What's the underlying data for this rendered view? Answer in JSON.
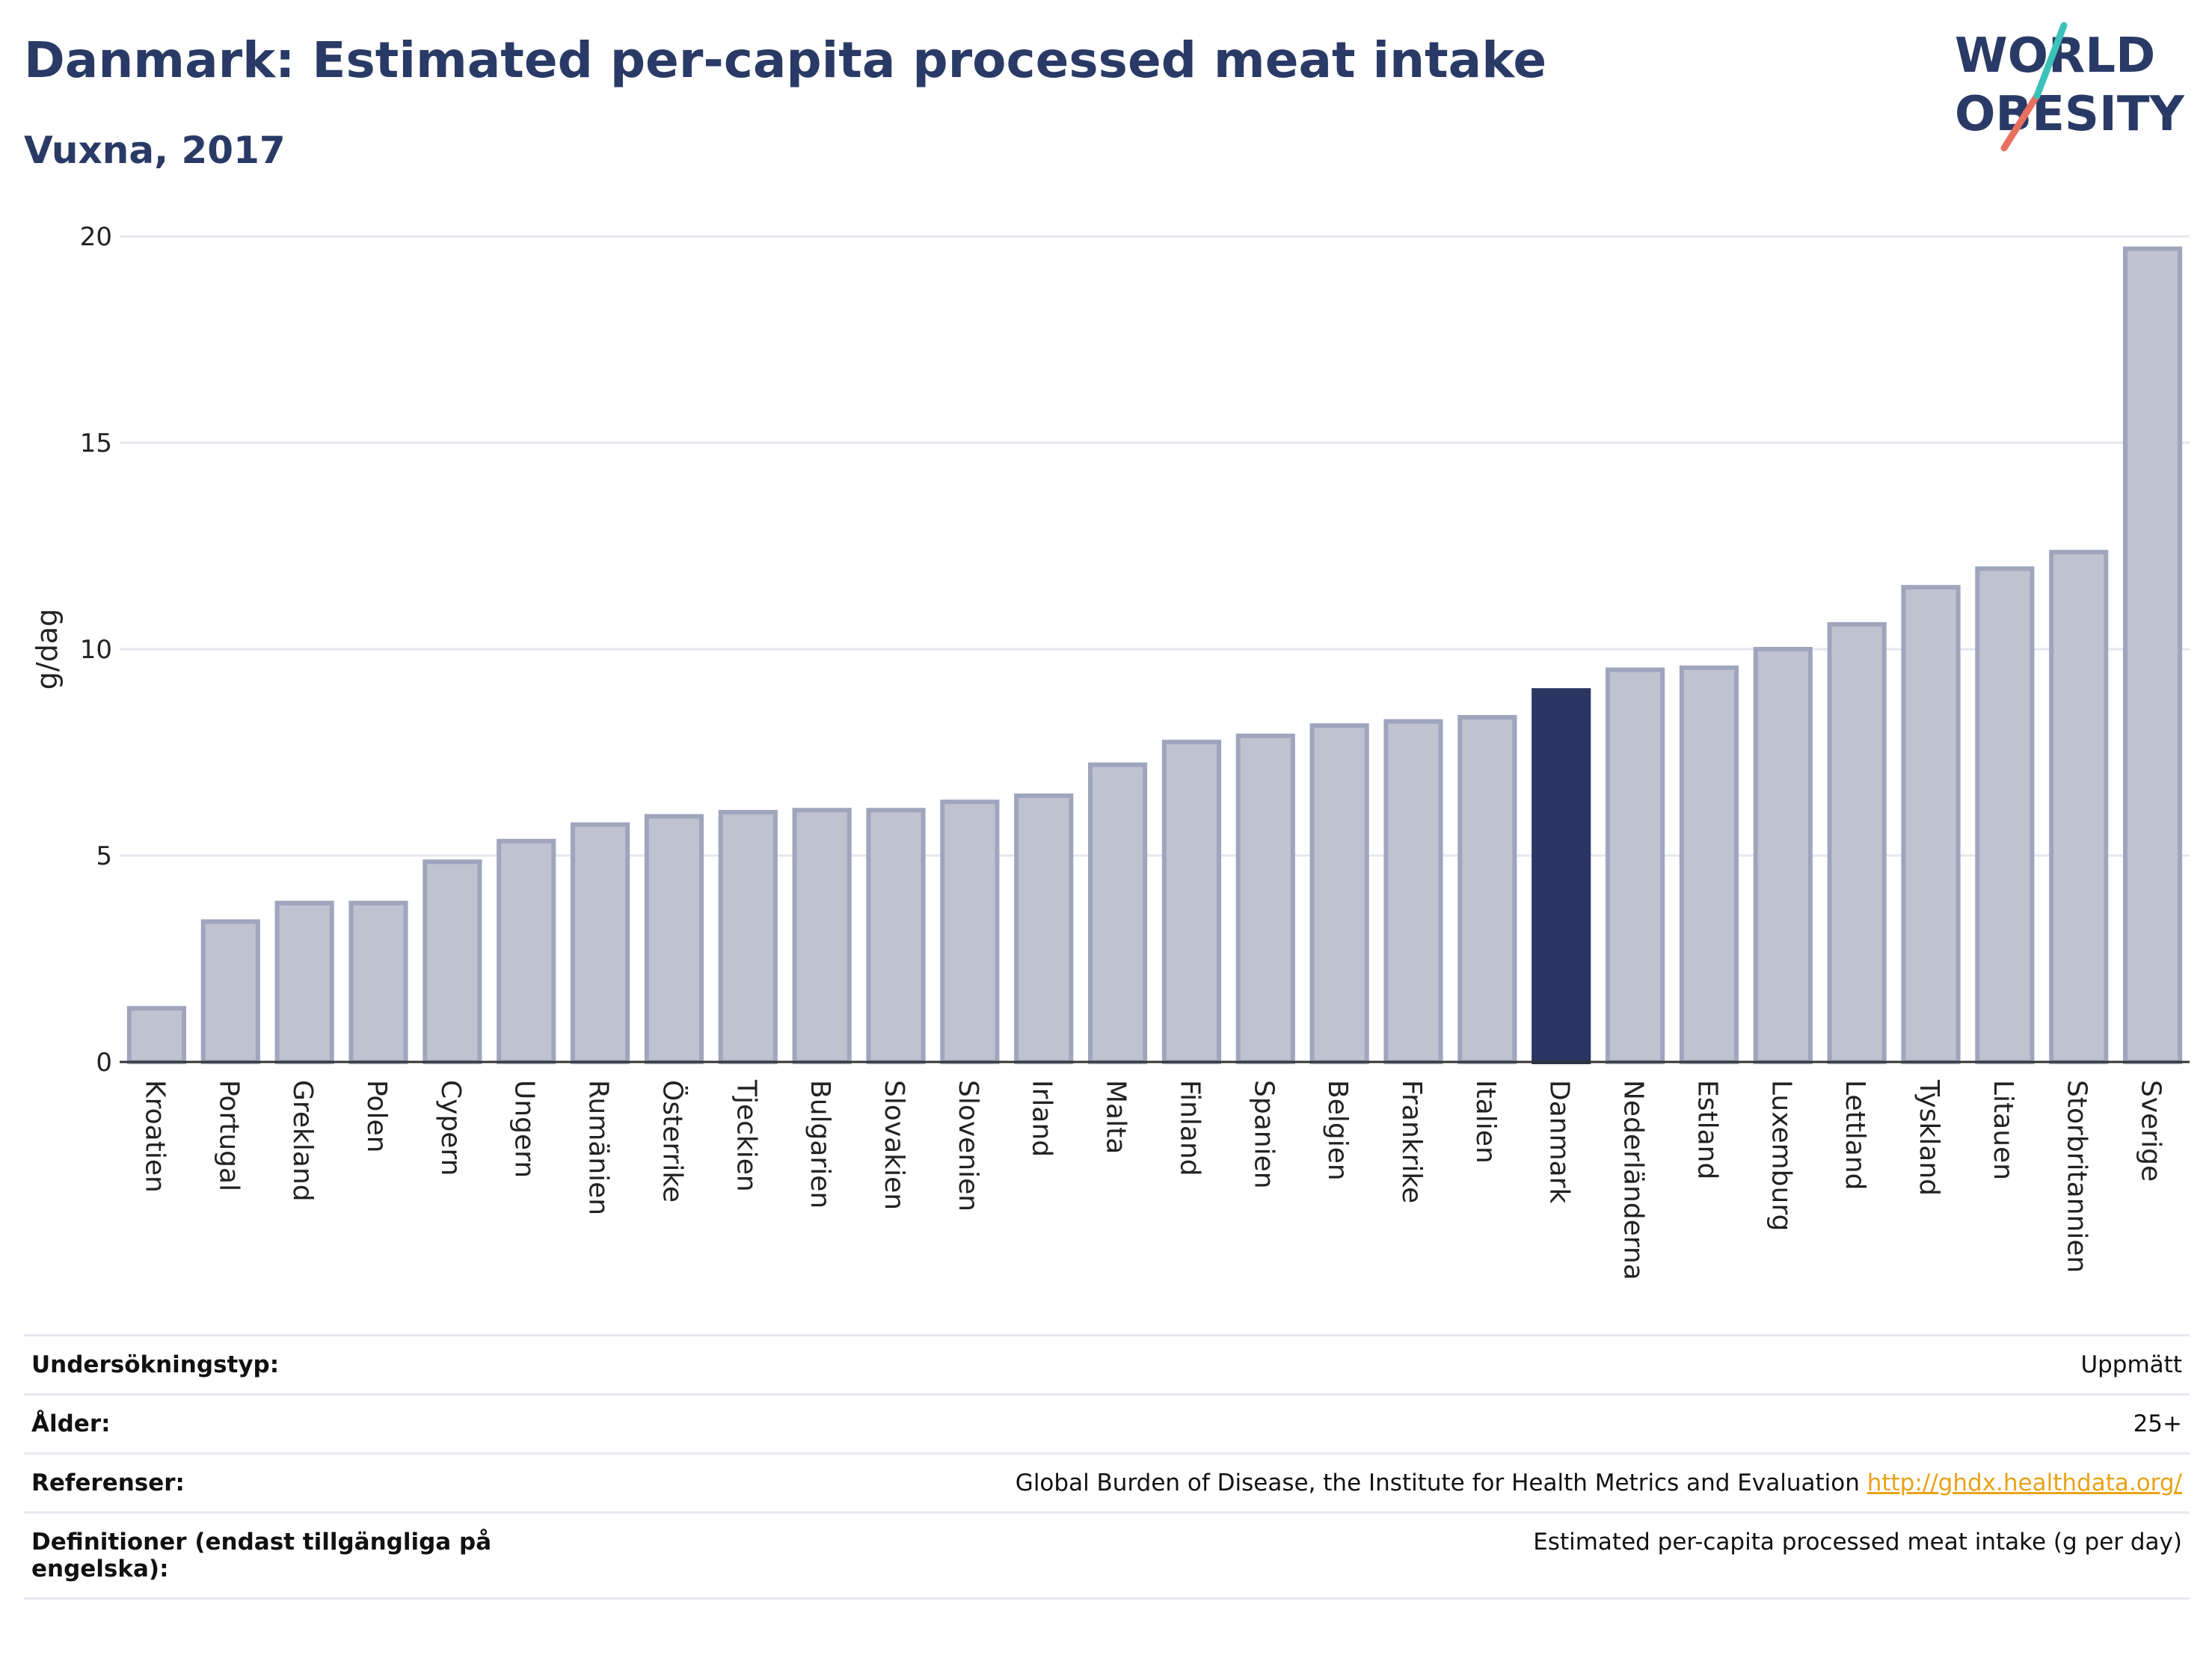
{
  "header": {
    "title": "Danmark: Estimated per-capita processed meat intake",
    "subtitle": "Vuxna, 2017",
    "logo_line1": "WORLD",
    "logo_line2": "OBESITY"
  },
  "chart_data": {
    "type": "bar",
    "ylabel": "g/dag",
    "xlabel": "",
    "ylim": [
      0,
      20
    ],
    "yticks": [
      0,
      5,
      10,
      15,
      20
    ],
    "grid": true,
    "highlight": "Danmark",
    "colors": {
      "bar": "#bfc3d0",
      "bar_border": "#9ea5bd",
      "highlight": "#2a3561",
      "grid": "#e5e7ee",
      "axis": "#333333"
    },
    "categories": [
      "Kroatien",
      "Portugal",
      "Grekland",
      "Polen",
      "Cypern",
      "Ungern",
      "Rumänien",
      "Österrike",
      "Tjeckien",
      "Bulgarien",
      "Slovakien",
      "Slovenien",
      "Irland",
      "Malta",
      "Finland",
      "Spanien",
      "Belgien",
      "Frankrike",
      "Italien",
      "Danmark",
      "Nederländerna",
      "Estland",
      "Luxemburg",
      "Lettland",
      "Tyskland",
      "Litauen",
      "Storbritannien",
      "Sverige"
    ],
    "values": [
      1.3,
      3.4,
      3.85,
      3.85,
      4.85,
      5.35,
      5.75,
      5.95,
      6.05,
      6.1,
      6.1,
      6.3,
      6.45,
      7.2,
      7.75,
      7.9,
      8.15,
      8.25,
      8.35,
      9.0,
      9.5,
      9.55,
      10.0,
      10.6,
      11.5,
      11.95,
      12.35,
      19.7
    ]
  },
  "info": {
    "rows": [
      {
        "label": "Undersökningstyp:",
        "value": "Uppmätt"
      },
      {
        "label": "Ålder:",
        "value": "25+"
      },
      {
        "label": "Referenser:",
        "value": "Global Burden of Disease, the Institute for Health Metrics and Evaluation",
        "link": "http://ghdx.healthdata.org/"
      },
      {
        "label": "Definitioner (endast tillgängliga på engelska):",
        "value": "Estimated per-capita processed meat intake (g per day)"
      }
    ]
  }
}
